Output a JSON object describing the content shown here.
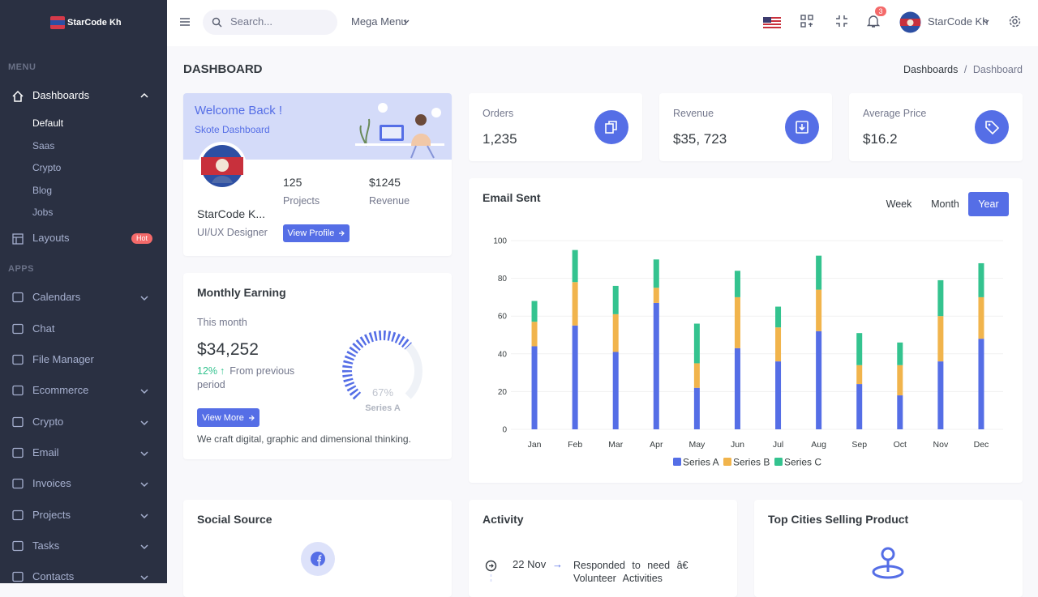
{
  "brand": "StarCode Kh",
  "sidebar": {
    "menu_title": "MENU",
    "dashboards": {
      "label": "Dashboards",
      "children": [
        "Default",
        "Saas",
        "Crypto",
        "Blog",
        "Jobs"
      ]
    },
    "layouts": {
      "label": "Layouts",
      "badge": "Hot"
    },
    "apps_title": "APPS",
    "apps": [
      "Calendars",
      "Chat",
      "File Manager",
      "Ecommerce",
      "Crypto",
      "Email",
      "Invoices",
      "Projects",
      "Tasks",
      "Contacts"
    ]
  },
  "topbar": {
    "search_placeholder": "Search...",
    "mega_menu": "Mega Menu",
    "notifications": "3",
    "user": "StarCode Kh"
  },
  "page": {
    "title": "DASHBOARD",
    "breadcrumb": [
      "Dashboards",
      "Dashboard"
    ]
  },
  "welcome": {
    "title": "Welcome Back !",
    "subtitle": "Skote Dashboard",
    "name": "StarCode K...",
    "role": "UI/UX Designer",
    "stats": [
      {
        "value": "125",
        "label": "Projects"
      },
      {
        "value": "$1245",
        "label": "Revenue"
      }
    ],
    "button": "View Profile"
  },
  "stats": [
    {
      "label": "Orders",
      "value": "1,235"
    },
    {
      "label": "Revenue",
      "value": "$35, 723"
    },
    {
      "label": "Average Price",
      "value": "$16.2"
    }
  ],
  "monthly_earning": {
    "title": "Monthly Earning",
    "period": "This month",
    "amount": "$34,252",
    "change": "12%",
    "change_text": "From previous period",
    "button": "View More",
    "note": "We craft digital, graphic and dimensional thinking.",
    "gauge": {
      "value": 67,
      "value_label": "67%",
      "series": "Series A"
    }
  },
  "chart_data": {
    "type": "bar",
    "title": "Email Sent",
    "filters": [
      "Week",
      "Month",
      "Year"
    ],
    "active_filter": "Year",
    "stacked": true,
    "categories": [
      "Jan",
      "Feb",
      "Mar",
      "Apr",
      "May",
      "Jun",
      "Jul",
      "Aug",
      "Sep",
      "Oct",
      "Nov",
      "Dec"
    ],
    "series": [
      {
        "name": "Series A",
        "color": "#556ee6",
        "values": [
          44,
          55,
          41,
          67,
          22,
          43,
          36,
          52,
          24,
          18,
          36,
          48
        ]
      },
      {
        "name": "Series B",
        "color": "#f1b44c",
        "values": [
          13,
          23,
          20,
          8,
          13,
          27,
          18,
          22,
          10,
          16,
          24,
          22
        ]
      },
      {
        "name": "Series C",
        "color": "#34c38f",
        "values": [
          11,
          17,
          15,
          15,
          21,
          14,
          11,
          18,
          17,
          12,
          19,
          18
        ]
      }
    ],
    "ylim": [
      0,
      100
    ],
    "yticks": [
      0,
      20,
      40,
      60,
      80,
      100
    ],
    "grid": true,
    "legend": "bottom"
  },
  "social": {
    "title": "Social Source"
  },
  "activity": {
    "title": "Activity",
    "items": [
      {
        "date": "22 Nov",
        "text": "Responded to need â€ Volunteer Activities"
      }
    ]
  },
  "cities": {
    "title": "Top Cities Selling Product"
  }
}
